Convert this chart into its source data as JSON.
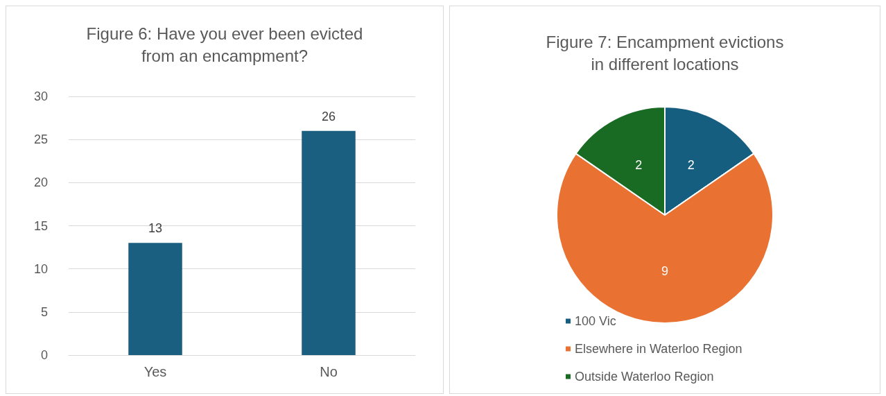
{
  "chart_data": [
    {
      "type": "bar",
      "title": "Figure 6: Have you ever been evicted from an encampment?",
      "categories": [
        "Yes",
        "No"
      ],
      "values": [
        13,
        26
      ],
      "color": "#1a5f7f",
      "ylim": [
        0,
        30
      ],
      "yticks": [
        0,
        5,
        10,
        15,
        20,
        25,
        30
      ],
      "grid": "y",
      "data_labels": true,
      "legend": false
    },
    {
      "type": "pie",
      "title": "Figure 7: Encampment evictions in different locations",
      "categories": [
        "100 Vic",
        "Elsewhere in Waterloo Region",
        "Outside Waterloo Region"
      ],
      "values": [
        2,
        9,
        2
      ],
      "colors": [
        "#165e80",
        "#e97132",
        "#196b24"
      ],
      "data_labels": true,
      "legend": "bottom left"
    }
  ]
}
